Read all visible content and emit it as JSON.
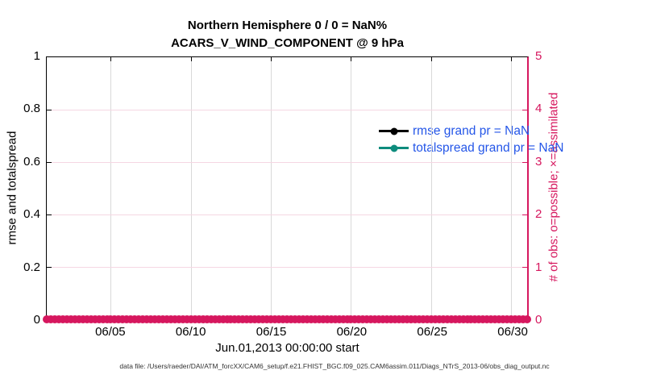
{
  "figure": {
    "title_line1": "Northern Hemisphere 0 / 0 = NaN%",
    "title_line2": "ACARS_V_WIND_COMPONENT @ 9 hPa",
    "xlabel": "Jun.01,2013 00:00:00 start",
    "ylabel_left": "rmse and totalspread",
    "ylabel_right": "# of obs: o=possible; ×=assimilated",
    "footer": "data file: /Users/raeder/DAI/ATM_forcXX/CAM6_setup/f.e21.FHIST_BGC.f09_025.CAM6assim.011/Diags_NTrS_2013-06/obs_diag_output.nc"
  },
  "legend": [
    {
      "label": "rmse grand pr = NaN",
      "color": "#000000"
    },
    {
      "label": "totalspread grand pr = NaN",
      "color": "#0E8C7D"
    }
  ],
  "axes": {
    "left_tick_labels": [
      "0",
      "0.2",
      "0.4",
      "0.6",
      "0.8",
      "1"
    ],
    "right_tick_labels": [
      "0",
      "1",
      "2",
      "3",
      "4",
      "5"
    ],
    "x_tick_labels": [
      "06/05",
      "06/10",
      "06/15",
      "06/20",
      "06/25",
      "06/30"
    ],
    "x_tick_day_offsets": [
      4,
      9,
      14,
      19,
      24,
      29
    ],
    "x_range_days": 30
  },
  "colors": {
    "right_axis_crimson": "#D6175E",
    "legend_text_blue": "#2456E8",
    "totalspread_teal": "#0E8C7D",
    "rmse_black": "#000000",
    "hgrid_pink": "#F5D7E3",
    "vgrid_gray": "#D9D9D9"
  },
  "chart_data": {
    "type": "line",
    "title": "Northern Hemisphere 0 / 0 = NaN% — ACARS_V_WIND_COMPONENT @ 9 hPa",
    "xlabel": "Jun.01,2013 00:00:00 start",
    "x_axis": {
      "start": "Jun.01,2013 00:00:00",
      "range_days": [
        0,
        30
      ],
      "tick_labels": [
        "06/05",
        "06/10",
        "06/15",
        "06/20",
        "06/25",
        "06/30"
      ],
      "tick_day_offsets": [
        4,
        9,
        14,
        19,
        24,
        29
      ]
    },
    "y_left": {
      "label": "rmse and totalspread",
      "lim": [
        0,
        1
      ],
      "ticks": [
        0,
        0.2,
        0.4,
        0.6,
        0.8,
        1
      ]
    },
    "y_right": {
      "label": "# of obs: o=possible; ×=assimilated",
      "lim": [
        0,
        5
      ],
      "ticks": [
        0,
        1,
        2,
        3,
        4,
        5
      ]
    },
    "grid": true,
    "legend_position": "top-right-inside",
    "series": [
      {
        "name": "rmse grand pr = NaN",
        "axis": "left",
        "color": "#000000",
        "marker": "filled-circle",
        "values": "NaN (nothing plotted)"
      },
      {
        "name": "totalspread grand pr = NaN",
        "axis": "left",
        "color": "#0E8C7D",
        "marker": "filled-circle",
        "values": "NaN (nothing plotted)"
      },
      {
        "name": "# of obs possible (o)",
        "axis": "right",
        "color": "#D6175E",
        "marker": "o",
        "constant_value": 0,
        "n_points": 121
      },
      {
        "name": "# of obs assimilated (×)",
        "axis": "right",
        "color": "#D6175E",
        "marker": "×",
        "constant_value": 0,
        "n_points": 121
      }
    ]
  }
}
